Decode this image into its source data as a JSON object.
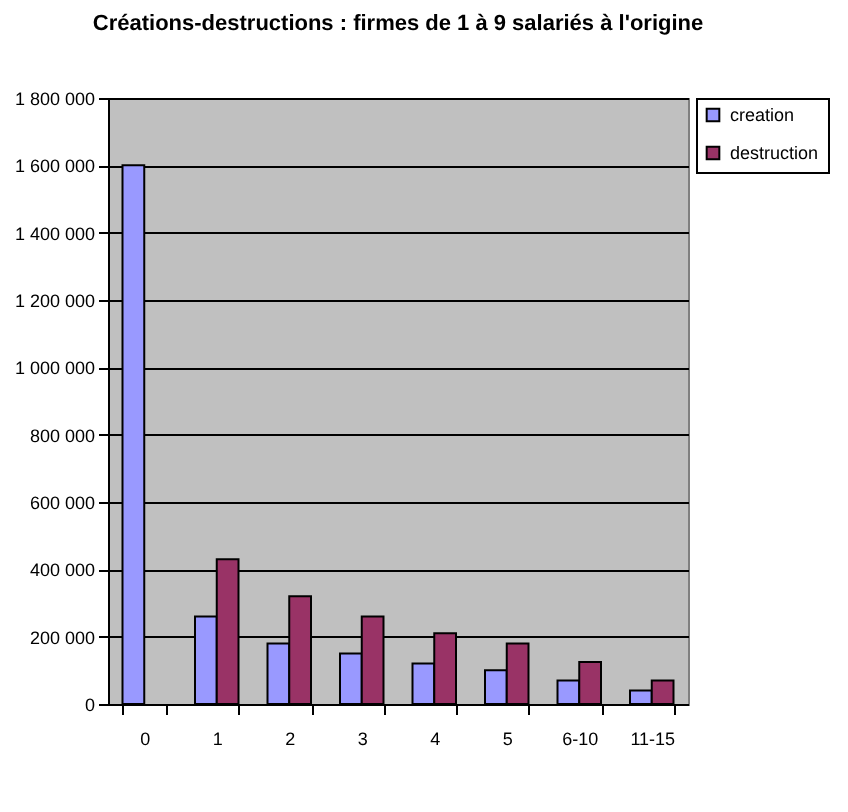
{
  "chart_data": {
    "type": "bar",
    "title": "Créations-destructions : firmes  de 1 à 9 salariés à l'origine",
    "categories": [
      "0",
      "1",
      "2",
      "3",
      "4",
      "5",
      "6-10",
      "11-15"
    ],
    "series": [
      {
        "name": "creation",
        "color": "#9999ff",
        "values": [
          1600000,
          260000,
          180000,
          150000,
          120000,
          100000,
          70000,
          40000
        ]
      },
      {
        "name": "destruction",
        "color": "#993366",
        "values": [
          null,
          430000,
          320000,
          260000,
          210000,
          180000,
          125000,
          70000
        ]
      }
    ],
    "ylim": [
      0,
      1800000
    ],
    "yticks": [
      {
        "value": 0,
        "label": "0"
      },
      {
        "value": 200000,
        "label": "200 000"
      },
      {
        "value": 400000,
        "label": "400 000"
      },
      {
        "value": 600000,
        "label": "600 000"
      },
      {
        "value": 800000,
        "label": "800 000"
      },
      {
        "value": 1000000,
        "label": "1 000 000"
      },
      {
        "value": 1200000,
        "label": "1 200 000"
      },
      {
        "value": 1400000,
        "label": "1 400 000"
      },
      {
        "value": 1600000,
        "label": "1 600 000"
      },
      {
        "value": 1800000,
        "label": "1 800 000"
      }
    ],
    "grid": "y",
    "legend": "right"
  }
}
